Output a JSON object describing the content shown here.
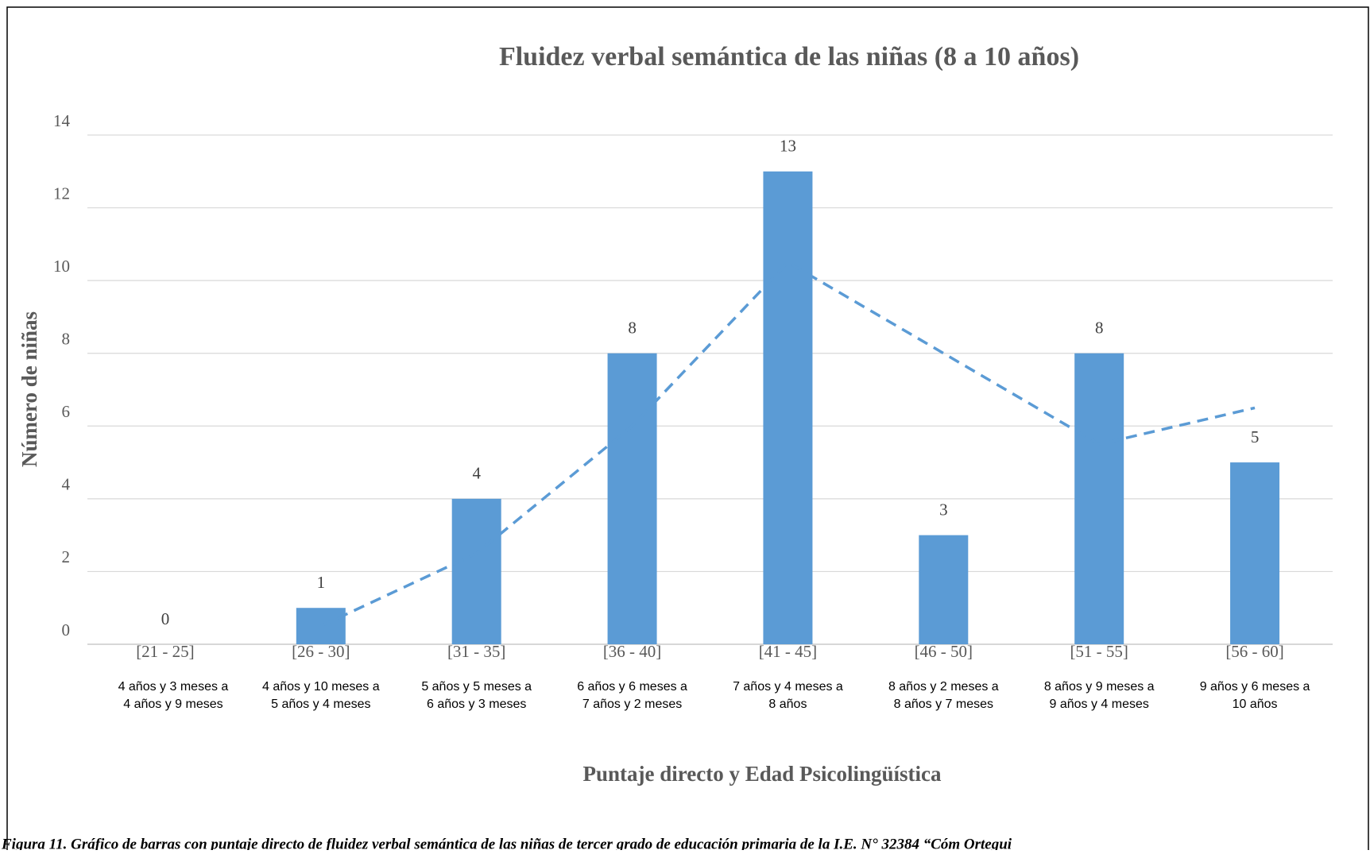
{
  "chart_data": {
    "type": "bar",
    "title": "Fluidez verbal semántica de las niñas (8 a 10 años)",
    "y_label": "Número de niñas",
    "x_label": "Puntaje directo y Edad Psicolingüística",
    "categories": [
      "[21 - 25]",
      "[26 - 30]",
      "[31 - 35]",
      "[36 - 40]",
      "[41 - 45]",
      "[46 - 50]",
      "[51 - 55]",
      "[56 - 60]"
    ],
    "sublabels": [
      [
        "4 años y 3 meses a",
        "4 años y 9 meses"
      ],
      [
        "4 años y 10  meses a",
        "5 años y  4 meses"
      ],
      [
        "5 años y 5 meses a",
        "6 años y 3 meses"
      ],
      [
        "6 años y 6 meses a",
        "7 años y 2 meses"
      ],
      [
        "7 años y 4 meses a",
        "8 años"
      ],
      [
        "8 años y 2 meses a",
        "8 años y 7 meses"
      ],
      [
        "8 años y 9 meses a",
        "9 años y 4 meses"
      ],
      [
        "9 años y 6 meses a",
        "10 años"
      ]
    ],
    "values": [
      0,
      1,
      4,
      8,
      13,
      3,
      8,
      5
    ],
    "color": "#5b9bd5",
    "trend_values": [
      null,
      0.5,
      2.5,
      6,
      10.5,
      8,
      5.5,
      6.5
    ],
    "trend_color": "#5b9bd5",
    "ylim": [
      0,
      14
    ],
    "yticks": [
      0,
      2,
      4,
      6,
      8,
      10,
      12,
      14
    ],
    "grid": true,
    "caption": "Figura 11. Gráfico de barras con puntaje directo de fluidez verbal semántica de las niñas de tercer grado de educación primaria de la I.E. N° 32384 “Cóm Ortegui"
  }
}
